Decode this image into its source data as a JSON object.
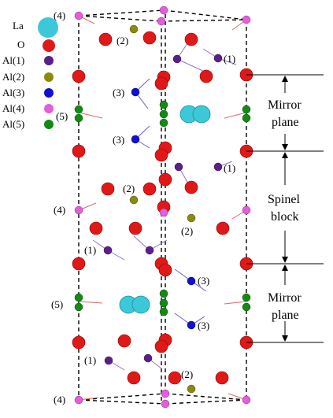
{
  "legend": {
    "items": [
      {
        "label": "La",
        "color": "#3cc8d8"
      },
      {
        "label": "O",
        "color": "#e01818"
      },
      {
        "label": "Al(1)",
        "color": "#5b1f8a"
      },
      {
        "label": "Al(2)",
        "color": "#8a8a10"
      },
      {
        "label": "Al(3)",
        "color": "#1010d0"
      },
      {
        "label": "Al(4)",
        "color": "#e060d8"
      },
      {
        "label": "Al(5)",
        "color": "#148a14"
      }
    ]
  },
  "site_labels": {
    "top_4": "(4)",
    "top_2": "(2)",
    "upper_1_right": "(1)",
    "upper_3_a": "(3)",
    "upper_5": "(5)",
    "upper_3_b": "(3)",
    "mid_1_right": "(1)",
    "mid_2": "(2)",
    "mid_4": "(4)",
    "mid_2_lower": "(2)",
    "lower_1_left": "(1)",
    "lower_3_a": "(3)",
    "lower_5": "(5)",
    "lower_3_b": "(3)",
    "bottom_1_left": "(1)",
    "bottom_2": "(2)",
    "bottom_4": "(4)"
  },
  "annotations": {
    "mirror_plane_top_line1": "Mirror",
    "mirror_plane_top_line2": "plane",
    "spinel_line1": "Spinel",
    "spinel_line2": "block",
    "mirror_plane_bottom_line1": "Mirror",
    "mirror_plane_bottom_line2": "plane"
  }
}
